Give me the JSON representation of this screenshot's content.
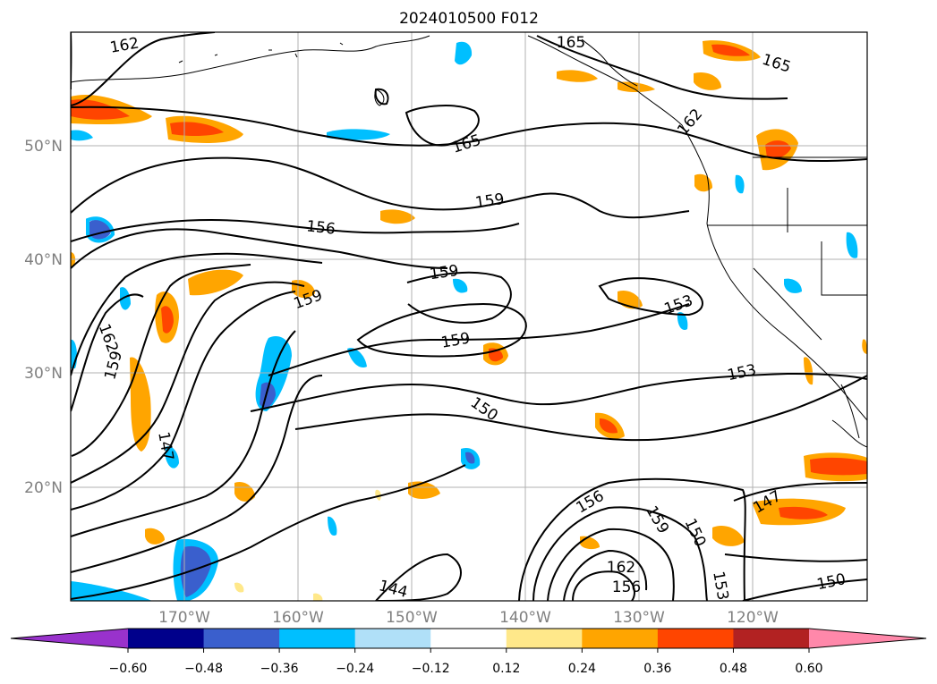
{
  "title": "2024010500 F012",
  "lat_labels": [
    "50°N",
    "40°N",
    "30°N",
    "20°N"
  ],
  "lon_labels": [
    "170°W",
    "160°W",
    "150°W",
    "140°W",
    "130°W",
    "120°W"
  ],
  "colorbar": {
    "colors": [
      "#9932cc",
      "#00008b",
      "#3a5fcd",
      "#00bfff",
      "#b0e0f8",
      "#ffffff",
      "#ffe88a",
      "#ffa500",
      "#ff4500",
      "#b22222",
      "#ff88aa"
    ],
    "ticks": [
      "−0.60",
      "−0.48",
      "−0.36",
      "−0.24",
      "−0.12",
      "0.12",
      "0.24",
      "0.36",
      "0.48",
      "0.60"
    ]
  },
  "contour_labels": [
    "162",
    "165",
    "159",
    "156",
    "153",
    "150",
    "147",
    "144"
  ]
}
